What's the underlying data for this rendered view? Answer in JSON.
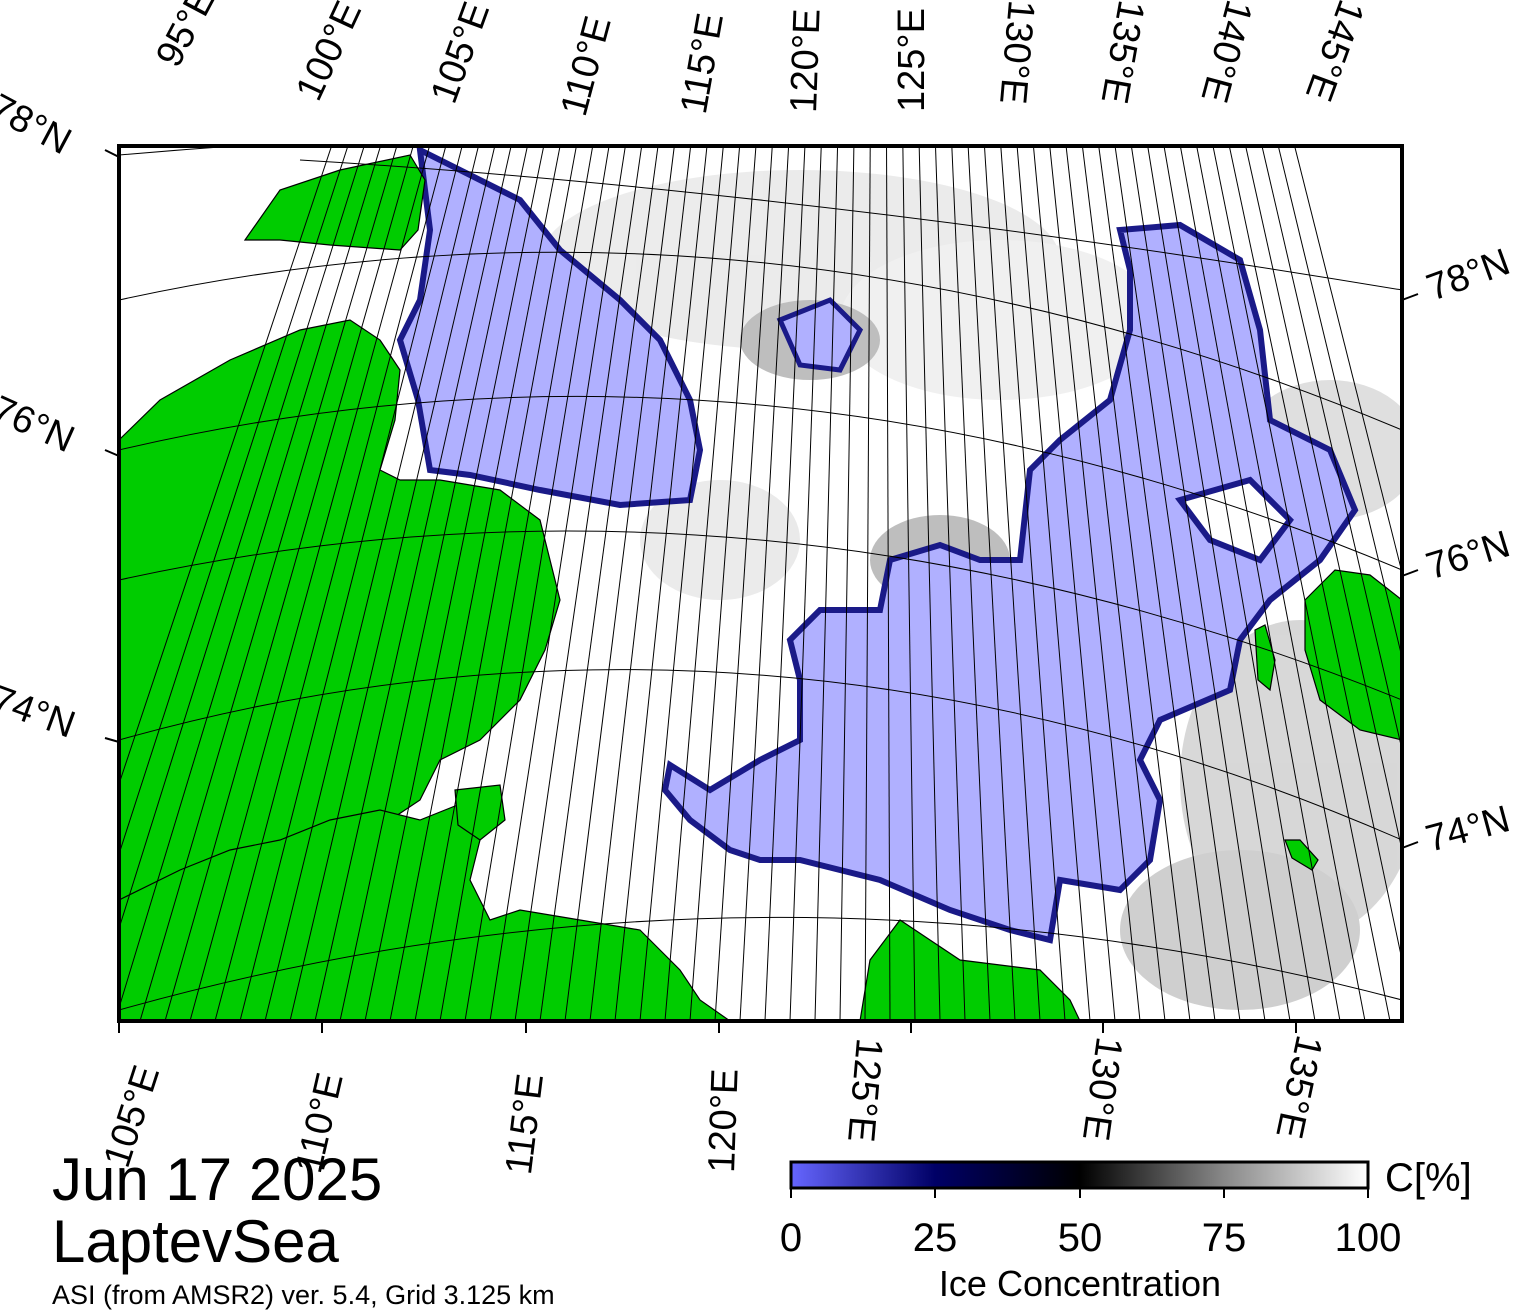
{
  "header": {
    "date": "Jun 17 2025",
    "region": "LaptevSea",
    "source": "ASI (from AMSR2) ver. 5.4,  Grid 3.125 km"
  },
  "map": {
    "projection": "polar stereographic",
    "land_color": "#00cc00",
    "coast_shadow_color": "#888888",
    "open_water_color": "#ffffff",
    "low_ice_color": "#b0b0ff",
    "frame_color": "#000000",
    "top_lon_labels": [
      "95°E",
      "100°E",
      "105°E",
      "110°E",
      "115°E",
      "120°E",
      "125°E",
      "130°E",
      "135°E",
      "140°E",
      "145°E"
    ],
    "bottom_lon_labels": [
      "105°E",
      "110°E",
      "115°E",
      "120°E",
      "125°E",
      "130°E",
      "135°E"
    ],
    "left_lat_labels": [
      "78°N",
      "76°N",
      "74°N"
    ],
    "right_lat_labels": [
      "78°N",
      "76°N",
      "74°N"
    ]
  },
  "colorbar": {
    "unit": "C[%]",
    "title": "Ice Concentration",
    "ticks": [
      "0",
      "25",
      "50",
      "75",
      "100"
    ],
    "stops": [
      "#6666ff",
      "#000066",
      "#000000",
      "#888888",
      "#ffffff"
    ],
    "min": 0,
    "max": 100
  }
}
